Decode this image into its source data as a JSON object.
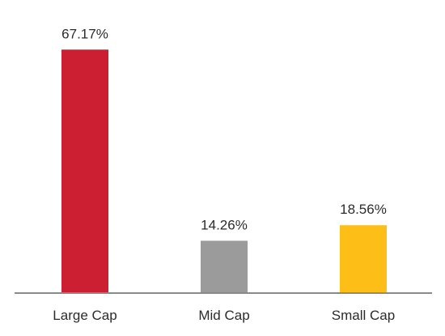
{
  "chart_data": {
    "type": "bar",
    "title": "",
    "xlabel": "",
    "ylabel": "",
    "ylim": [
      0,
      80
    ],
    "categories": [
      "Large Cap",
      "Mid Cap",
      "Small Cap"
    ],
    "values": [
      67.17,
      14.26,
      18.56
    ],
    "value_labels": [
      "67.17%",
      "14.26%",
      "18.56%"
    ],
    "colors": [
      "#CC2032",
      "#9B9B9B",
      "#FDBE17"
    ],
    "axis_color": "#8A8A8A",
    "grid": false,
    "legend": "none"
  }
}
